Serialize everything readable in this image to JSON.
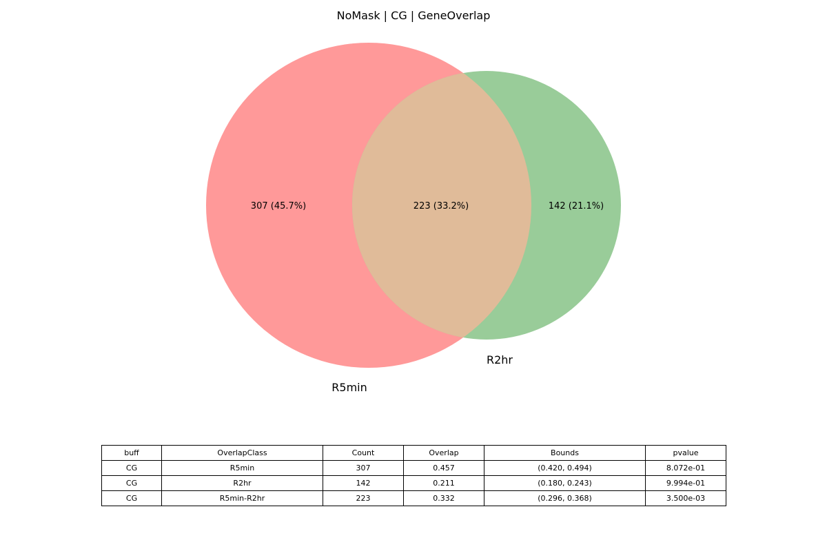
{
  "figure": {
    "title": "NoMask | CG | GeneOverlap"
  },
  "venn": {
    "sets": [
      {
        "name": "R5min",
        "color": "#ff9999"
      },
      {
        "name": "R2hr",
        "color": "#99cc99"
      }
    ],
    "overlap_color": "#e0bb99",
    "regions": {
      "R5min_only": "307 (45.7%)",
      "intersection": "223 (33.2%)",
      "R2hr_only": "142 (21.1%)"
    }
  },
  "table": {
    "columns": [
      "buff",
      "OverlapClass",
      "Count",
      "Overlap",
      "Bounds",
      "pvalue"
    ],
    "rows": [
      [
        "CG",
        "R5min",
        "307",
        "0.457",
        "(0.420, 0.494)",
        "8.072e-01"
      ],
      [
        "CG",
        "R2hr",
        "142",
        "0.211",
        "(0.180, 0.243)",
        "9.994e-01"
      ],
      [
        "CG",
        "R5min-R2hr",
        "223",
        "0.332",
        "(0.296, 0.368)",
        "3.500e-03"
      ]
    ]
  }
}
